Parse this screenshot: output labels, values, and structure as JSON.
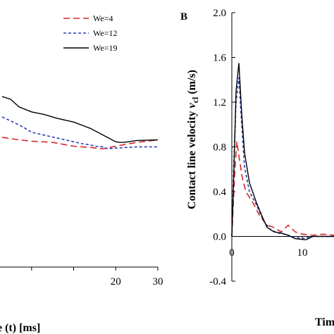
{
  "chart_data": [
    {
      "type": "line",
      "panel_label": "",
      "xlabel": "Time (t) [ms]",
      "xlabel_visible_fragment": "e (t) [ms]",
      "ylabel": "",
      "xlim": [
        -7,
        30
      ],
      "ylim": [
        0,
        2.0
      ],
      "x_tick_labels": [
        "20",
        "30"
      ],
      "y_tick_labels": [],
      "legend": {
        "placement": "top-right",
        "entries": [
          "We=4",
          "We=12",
          "We=19"
        ]
      },
      "series": [
        {
          "name": "We=4",
          "color": "#d62728",
          "dash": "dashed",
          "points": [
            [
              -7,
              1.02
            ],
            [
              -3,
              1.0
            ],
            [
              0,
              0.99
            ],
            [
              5,
              0.98
            ],
            [
              10,
              0.95
            ],
            [
              14,
              0.94
            ],
            [
              17,
              0.93
            ],
            [
              20,
              0.95
            ],
            [
              25,
              0.98
            ],
            [
              30,
              1.0
            ]
          ]
        },
        {
          "name": "We=12",
          "color": "#2a3eb1",
          "dash": "dotted",
          "points": [
            [
              -7,
              1.18
            ],
            [
              -5,
              1.15
            ],
            [
              -2,
              1.1
            ],
            [
              0,
              1.06
            ],
            [
              4,
              1.03
            ],
            [
              8,
              1.0
            ],
            [
              12,
              0.97
            ],
            [
              14,
              0.96
            ],
            [
              15,
              0.95
            ],
            [
              17,
              0.945
            ],
            [
              18,
              0.93
            ],
            [
              20,
              0.935
            ],
            [
              25,
              0.945
            ],
            [
              30,
              0.945
            ]
          ]
        },
        {
          "name": "We=19",
          "color": "#000000",
          "dash": "solid",
          "points": [
            [
              -7,
              1.34
            ],
            [
              -5,
              1.32
            ],
            [
              -3,
              1.26
            ],
            [
              0,
              1.22
            ],
            [
              3,
              1.2
            ],
            [
              6,
              1.17
            ],
            [
              10,
              1.14
            ],
            [
              14,
              1.09
            ],
            [
              18,
              1.02
            ],
            [
              20,
              0.985
            ],
            [
              21,
              0.98
            ],
            [
              22,
              0.98
            ],
            [
              25,
              0.995
            ],
            [
              30,
              1.0
            ]
          ]
        }
      ]
    },
    {
      "type": "line",
      "panel_label": "B",
      "ylabel": "Contact line velocity v_cl (m/s)",
      "ylabel_main": "Contact line velocity ",
      "ylabel_var": "v",
      "ylabel_sub": "cl",
      "ylabel_unit": " (m/s)",
      "xlabel": "Tim",
      "xlim": [
        0,
        14.5
      ],
      "ylim": [
        -0.4,
        2.0
      ],
      "x_ticks": [
        0,
        10
      ],
      "x_tick_labels": [
        "0",
        "10"
      ],
      "y_ticks": [
        -0.4,
        0.0,
        0.4,
        0.8,
        1.2,
        1.6,
        2.0
      ],
      "y_tick_labels": [
        "-0.4",
        "0.0",
        "0.4",
        "0.8",
        "1.2",
        "1.6",
        "2.0"
      ],
      "series": [
        {
          "name": "We=4",
          "color": "#d62728",
          "dash": "dashed",
          "points": [
            [
              0,
              0.0
            ],
            [
              0.4,
              0.55
            ],
            [
              0.7,
              0.85
            ],
            [
              1.0,
              0.72
            ],
            [
              1.5,
              0.52
            ],
            [
              2.0,
              0.4
            ],
            [
              3.0,
              0.3
            ],
            [
              4.0,
              0.18
            ],
            [
              5.0,
              0.1
            ],
            [
              6.0,
              0.08
            ],
            [
              7.0,
              0.04
            ],
            [
              8.0,
              0.1
            ],
            [
              9.0,
              0.04
            ],
            [
              10.0,
              0.02
            ],
            [
              11.5,
              0.01
            ],
            [
              13.0,
              0.02
            ],
            [
              14.5,
              0.01
            ]
          ]
        },
        {
          "name": "We=12",
          "color": "#2a3eb1",
          "dash": "dotted",
          "points": [
            [
              0,
              0.0
            ],
            [
              0.3,
              0.7
            ],
            [
              0.6,
              1.2
            ],
            [
              1.0,
              1.42
            ],
            [
              1.4,
              1.0
            ],
            [
              1.8,
              0.62
            ],
            [
              2.5,
              0.4
            ],
            [
              3.5,
              0.28
            ],
            [
              4.5,
              0.14
            ],
            [
              5.5,
              0.06
            ],
            [
              6.5,
              0.03
            ],
            [
              7.5,
              0.02
            ],
            [
              8.5,
              0.0
            ],
            [
              10.0,
              -0.02
            ],
            [
              11.5,
              0.0
            ],
            [
              13.0,
              0.0
            ],
            [
              14.5,
              0.0
            ]
          ]
        },
        {
          "name": "We=19",
          "color": "#000000",
          "dash": "solid",
          "points": [
            [
              0,
              0.0
            ],
            [
              0.3,
              0.6
            ],
            [
              0.6,
              1.3
            ],
            [
              1.0,
              1.55
            ],
            [
              1.4,
              1.1
            ],
            [
              1.8,
              0.75
            ],
            [
              2.5,
              0.48
            ],
            [
              3.5,
              0.3
            ],
            [
              4.5,
              0.15
            ],
            [
              5.0,
              0.08
            ],
            [
              6.0,
              0.04
            ],
            [
              7.0,
              0.03
            ],
            [
              8.0,
              0.01
            ],
            [
              9.0,
              -0.02
            ],
            [
              10.5,
              -0.03
            ],
            [
              11.5,
              0.0
            ],
            [
              13.0,
              0.0
            ],
            [
              14.5,
              0.0
            ]
          ]
        }
      ]
    }
  ]
}
